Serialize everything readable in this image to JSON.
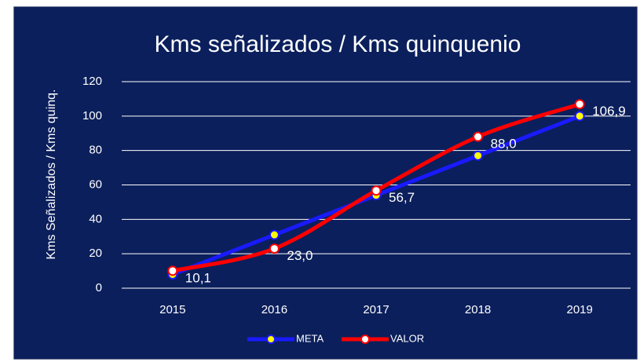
{
  "chart_data": {
    "type": "line",
    "title": "Kms señalizados / Kms quinquenio",
    "y_label": "Kms Señalizados / Kms quinq.",
    "categories": [
      "2015",
      "2016",
      "2017",
      "2018",
      "2019"
    ],
    "series": [
      {
        "name": "META",
        "color": "#1a1aff",
        "marker_color": "#ffff00",
        "values": [
          8,
          31,
          54,
          77,
          100
        ]
      },
      {
        "name": "VALOR",
        "color": "#ff0000",
        "marker_color": "#ffffff",
        "values": [
          10.1,
          23.0,
          56.7,
          88.0,
          106.9
        ],
        "value_labels": [
          "10,1",
          "23,0",
          "56,7",
          "88,0",
          "106,9"
        ]
      }
    ],
    "ylim": [
      0,
      120
    ],
    "yticks": [
      0,
      20,
      40,
      60,
      80,
      100,
      120
    ],
    "grid": true,
    "legend": "bottom"
  }
}
